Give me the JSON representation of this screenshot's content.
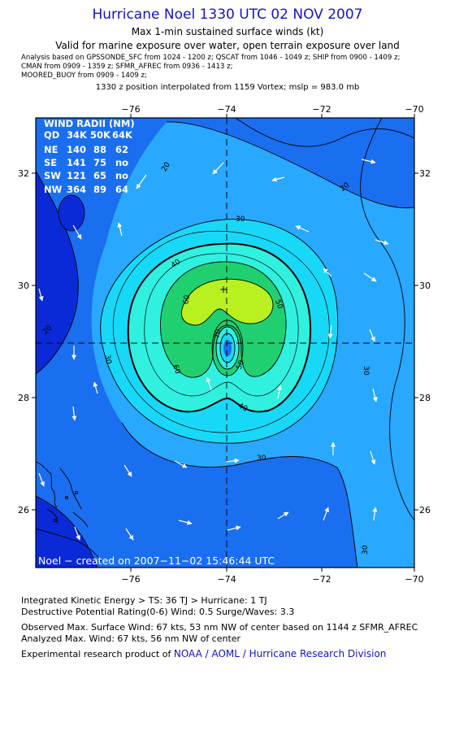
{
  "header": {
    "title": "Hurricane Noel 1330 UTC 02 NOV 2007",
    "subtitle1": "Max 1-min sustained surface winds (kt)",
    "subtitle2": "Valid for marine exposure over water, open terrain exposure over land",
    "analysis_lines": [
      "Analysis based on  GPSSONDE_SFC from 1024 - 1200 z;  QSCAT from 1046 - 1049 z;  SHIP from 0900 - 1409 z;",
      "CMAN from 0909 - 1359 z;  SFMR_AFREC from 0936 - 1413 z;",
      "MOORED_BUOY from 0909 - 1409 z;"
    ],
    "position_note": "1330 z position interpolated from 1159 Vortex; mslp = 983.0 mb"
  },
  "map": {
    "lon_ticks": [
      "−76",
      "−74",
      "−72",
      "−70"
    ],
    "lat_ticks": [
      "32",
      "30",
      "28",
      "26"
    ],
    "contour_labels": [
      "20",
      "20",
      "30",
      "40",
      "50",
      "60",
      "70",
      "60",
      "50",
      "40",
      "30",
      "30",
      "30",
      "20",
      "30"
    ],
    "credit": "Noel − created on 2007−11−02 15:46:44 UTC",
    "wind_radii": {
      "title": "WIND RADII (NM)",
      "header": [
        "QD",
        "34K",
        "50K",
        "64K"
      ],
      "rows": [
        [
          "NE",
          "140",
          "88",
          "62"
        ],
        [
          "SE",
          "141",
          "75",
          "no"
        ],
        [
          "SW",
          "121",
          "65",
          "no"
        ],
        [
          "NW",
          "364",
          "89",
          "64"
        ]
      ]
    },
    "colors": {
      "deep_blue": "#0a2ad8",
      "mid_blue": "#1a6ef0",
      "light_blue": "#28a8ff",
      "cyan": "#18d8f8",
      "aqua": "#30f0e0",
      "green": "#20d070",
      "yellow_green": "#b8f020"
    }
  },
  "footer": {
    "ike": "Integrated Kinetic Energy > TS: 36 TJ   > Hurricane: 1 TJ",
    "dpr": "Destructive Potential Rating(0-6)   Wind: 0.5 Surge/Waves: 3.3",
    "observed": "Observed Max. Surface Wind: 67 kts, 53 nm NW of center based on 1144 z SFMR_AFREC",
    "analyzed": "Analyzed Max. Wind: 67 kts, 56 nm NW of center",
    "credit_prefix": "Experimental research product of ",
    "credit_link": "NOAA / AOML / Hurricane Research Division"
  }
}
